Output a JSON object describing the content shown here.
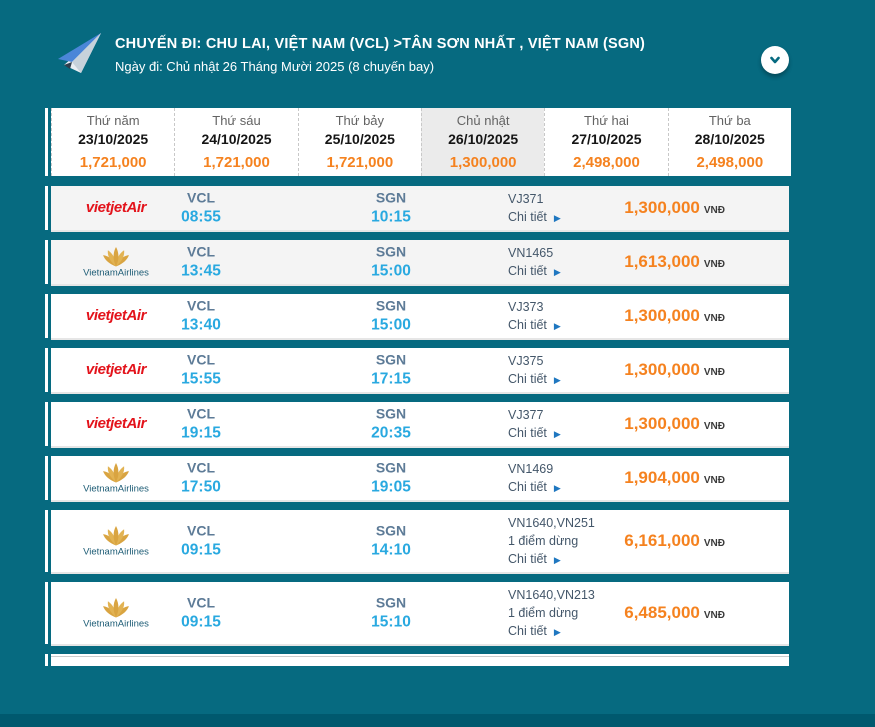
{
  "theme": {
    "background_teal": "#066A80",
    "price_orange": "#F5821F",
    "time_blue": "#29A9E0",
    "station_blue": "#5D7B97",
    "info_text": "#44576A",
    "arrow_blue": "#1F77C0",
    "vietjet_red": "#E3131B",
    "vna_gold": "#D9A441",
    "vna_text": "#1D5C75",
    "selected_tab_bg": "#EBEBEB"
  },
  "header": {
    "title": "CHUYẾN ĐI: CHU LAI, VIỆT NAM (VCL) >TÂN SƠN NHẤT , VIỆT NAM (SGN)",
    "subtitle": "Ngày đi: Chủ nhật 26 Tháng Mười 2025 (8 chuyến bay)"
  },
  "labels": {
    "details": "Chi tiết",
    "currency": "VNĐ"
  },
  "date_tabs": [
    {
      "day": "Thứ năm",
      "date": "23/10/2025",
      "price": "1,721,000",
      "selected": false
    },
    {
      "day": "Thứ sáu",
      "date": "24/10/2025",
      "price": "1,721,000",
      "selected": false
    },
    {
      "day": "Thứ bảy",
      "date": "25/10/2025",
      "price": "1,721,000",
      "selected": false
    },
    {
      "day": "Chủ nhật",
      "date": "26/10/2025",
      "price": "1,300,000",
      "selected": true
    },
    {
      "day": "Thứ hai",
      "date": "27/10/2025",
      "price": "2,498,000",
      "selected": false
    },
    {
      "day": "Thứ ba",
      "date": "28/10/2025",
      "price": "2,498,000",
      "selected": false
    }
  ],
  "airlines": {
    "vietjet_wordmark": "vietjetAir",
    "vna_wordmark": "VietnamAirlines"
  },
  "flights": [
    {
      "airline": "vietjet",
      "dep_code": "VCL",
      "dep_time": "08:55",
      "arr_code": "SGN",
      "arr_time": "10:15",
      "flight_no": "VJ371",
      "stop": "",
      "price": "1,300,000",
      "shaded": true
    },
    {
      "airline": "vna",
      "dep_code": "VCL",
      "dep_time": "13:45",
      "arr_code": "SGN",
      "arr_time": "15:00",
      "flight_no": "VN1465",
      "stop": "",
      "price": "1,613,000",
      "shaded": true
    },
    {
      "airline": "vietjet",
      "dep_code": "VCL",
      "dep_time": "13:40",
      "arr_code": "SGN",
      "arr_time": "15:00",
      "flight_no": "VJ373",
      "stop": "",
      "price": "1,300,000",
      "shaded": false
    },
    {
      "airline": "vietjet",
      "dep_code": "VCL",
      "dep_time": "15:55",
      "arr_code": "SGN",
      "arr_time": "17:15",
      "flight_no": "VJ375",
      "stop": "",
      "price": "1,300,000",
      "shaded": false
    },
    {
      "airline": "vietjet",
      "dep_code": "VCL",
      "dep_time": "19:15",
      "arr_code": "SGN",
      "arr_time": "20:35",
      "flight_no": "VJ377",
      "stop": "",
      "price": "1,300,000",
      "shaded": false
    },
    {
      "airline": "vna",
      "dep_code": "VCL",
      "dep_time": "17:50",
      "arr_code": "SGN",
      "arr_time": "19:05",
      "flight_no": "VN1469",
      "stop": "",
      "price": "1,904,000",
      "shaded": false
    },
    {
      "airline": "vna",
      "dep_code": "VCL",
      "dep_time": "09:15",
      "arr_code": "SGN",
      "arr_time": "14:10",
      "flight_no": "VN1640,VN251",
      "stop": "1 điểm dừng",
      "price": "6,161,000",
      "shaded": false
    },
    {
      "airline": "vna",
      "dep_code": "VCL",
      "dep_time": "09:15",
      "arr_code": "SGN",
      "arr_time": "15:10",
      "flight_no": "VN1640,VN213",
      "stop": "1 điểm dừng",
      "price": "6,485,000",
      "shaded": false
    }
  ]
}
